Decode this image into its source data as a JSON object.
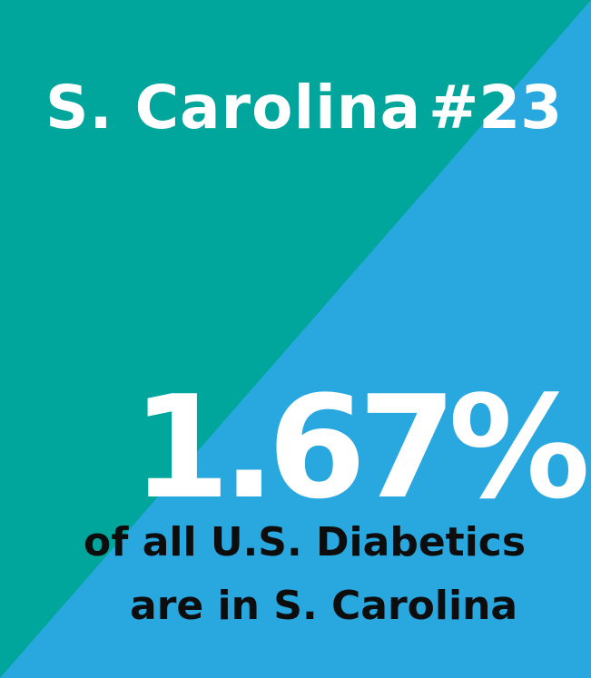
{
  "colors": {
    "background_top_left": "#00a69c",
    "background_bottom_right": "#29a8e0",
    "heading_text": "#ffffff",
    "caption_text": "#0d0d0d"
  },
  "header": {
    "state_name": "S. Carolina",
    "rank": "#23"
  },
  "statistic": {
    "value": "1.67%"
  },
  "caption": {
    "line1": "of all U.S. Diabetics",
    "line2": "are in S. Carolina"
  }
}
